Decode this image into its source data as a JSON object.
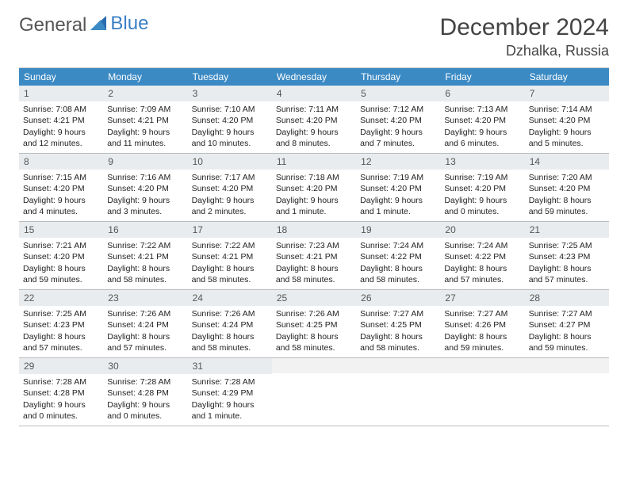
{
  "brand": {
    "first": "General",
    "second": "Blue"
  },
  "title": "December 2024",
  "location": "Dzhalka, Russia",
  "day_headers": [
    "Sunday",
    "Monday",
    "Tuesday",
    "Wednesday",
    "Thursday",
    "Friday",
    "Saturday"
  ],
  "colors": {
    "header_bg": "#3b8ac4",
    "header_text": "#ffffff",
    "daynum_bg": "#e9ecef",
    "border": "#bbbbbb",
    "text": "#222222",
    "brand_gray": "#555555",
    "brand_blue": "#3b7fc4"
  },
  "days": [
    {
      "n": "1",
      "sunrise": "Sunrise: 7:08 AM",
      "sunset": "Sunset: 4:21 PM",
      "daylight": "Daylight: 9 hours and 12 minutes."
    },
    {
      "n": "2",
      "sunrise": "Sunrise: 7:09 AM",
      "sunset": "Sunset: 4:21 PM",
      "daylight": "Daylight: 9 hours and 11 minutes."
    },
    {
      "n": "3",
      "sunrise": "Sunrise: 7:10 AM",
      "sunset": "Sunset: 4:20 PM",
      "daylight": "Daylight: 9 hours and 10 minutes."
    },
    {
      "n": "4",
      "sunrise": "Sunrise: 7:11 AM",
      "sunset": "Sunset: 4:20 PM",
      "daylight": "Daylight: 9 hours and 8 minutes."
    },
    {
      "n": "5",
      "sunrise": "Sunrise: 7:12 AM",
      "sunset": "Sunset: 4:20 PM",
      "daylight": "Daylight: 9 hours and 7 minutes."
    },
    {
      "n": "6",
      "sunrise": "Sunrise: 7:13 AM",
      "sunset": "Sunset: 4:20 PM",
      "daylight": "Daylight: 9 hours and 6 minutes."
    },
    {
      "n": "7",
      "sunrise": "Sunrise: 7:14 AM",
      "sunset": "Sunset: 4:20 PM",
      "daylight": "Daylight: 9 hours and 5 minutes."
    },
    {
      "n": "8",
      "sunrise": "Sunrise: 7:15 AM",
      "sunset": "Sunset: 4:20 PM",
      "daylight": "Daylight: 9 hours and 4 minutes."
    },
    {
      "n": "9",
      "sunrise": "Sunrise: 7:16 AM",
      "sunset": "Sunset: 4:20 PM",
      "daylight": "Daylight: 9 hours and 3 minutes."
    },
    {
      "n": "10",
      "sunrise": "Sunrise: 7:17 AM",
      "sunset": "Sunset: 4:20 PM",
      "daylight": "Daylight: 9 hours and 2 minutes."
    },
    {
      "n": "11",
      "sunrise": "Sunrise: 7:18 AM",
      "sunset": "Sunset: 4:20 PM",
      "daylight": "Daylight: 9 hours and 1 minute."
    },
    {
      "n": "12",
      "sunrise": "Sunrise: 7:19 AM",
      "sunset": "Sunset: 4:20 PM",
      "daylight": "Daylight: 9 hours and 1 minute."
    },
    {
      "n": "13",
      "sunrise": "Sunrise: 7:19 AM",
      "sunset": "Sunset: 4:20 PM",
      "daylight": "Daylight: 9 hours and 0 minutes."
    },
    {
      "n": "14",
      "sunrise": "Sunrise: 7:20 AM",
      "sunset": "Sunset: 4:20 PM",
      "daylight": "Daylight: 8 hours and 59 minutes."
    },
    {
      "n": "15",
      "sunrise": "Sunrise: 7:21 AM",
      "sunset": "Sunset: 4:20 PM",
      "daylight": "Daylight: 8 hours and 59 minutes."
    },
    {
      "n": "16",
      "sunrise": "Sunrise: 7:22 AM",
      "sunset": "Sunset: 4:21 PM",
      "daylight": "Daylight: 8 hours and 58 minutes."
    },
    {
      "n": "17",
      "sunrise": "Sunrise: 7:22 AM",
      "sunset": "Sunset: 4:21 PM",
      "daylight": "Daylight: 8 hours and 58 minutes."
    },
    {
      "n": "18",
      "sunrise": "Sunrise: 7:23 AM",
      "sunset": "Sunset: 4:21 PM",
      "daylight": "Daylight: 8 hours and 58 minutes."
    },
    {
      "n": "19",
      "sunrise": "Sunrise: 7:24 AM",
      "sunset": "Sunset: 4:22 PM",
      "daylight": "Daylight: 8 hours and 58 minutes."
    },
    {
      "n": "20",
      "sunrise": "Sunrise: 7:24 AM",
      "sunset": "Sunset: 4:22 PM",
      "daylight": "Daylight: 8 hours and 57 minutes."
    },
    {
      "n": "21",
      "sunrise": "Sunrise: 7:25 AM",
      "sunset": "Sunset: 4:23 PM",
      "daylight": "Daylight: 8 hours and 57 minutes."
    },
    {
      "n": "22",
      "sunrise": "Sunrise: 7:25 AM",
      "sunset": "Sunset: 4:23 PM",
      "daylight": "Daylight: 8 hours and 57 minutes."
    },
    {
      "n": "23",
      "sunrise": "Sunrise: 7:26 AM",
      "sunset": "Sunset: 4:24 PM",
      "daylight": "Daylight: 8 hours and 57 minutes."
    },
    {
      "n": "24",
      "sunrise": "Sunrise: 7:26 AM",
      "sunset": "Sunset: 4:24 PM",
      "daylight": "Daylight: 8 hours and 58 minutes."
    },
    {
      "n": "25",
      "sunrise": "Sunrise: 7:26 AM",
      "sunset": "Sunset: 4:25 PM",
      "daylight": "Daylight: 8 hours and 58 minutes."
    },
    {
      "n": "26",
      "sunrise": "Sunrise: 7:27 AM",
      "sunset": "Sunset: 4:25 PM",
      "daylight": "Daylight: 8 hours and 58 minutes."
    },
    {
      "n": "27",
      "sunrise": "Sunrise: 7:27 AM",
      "sunset": "Sunset: 4:26 PM",
      "daylight": "Daylight: 8 hours and 59 minutes."
    },
    {
      "n": "28",
      "sunrise": "Sunrise: 7:27 AM",
      "sunset": "Sunset: 4:27 PM",
      "daylight": "Daylight: 8 hours and 59 minutes."
    },
    {
      "n": "29",
      "sunrise": "Sunrise: 7:28 AM",
      "sunset": "Sunset: 4:28 PM",
      "daylight": "Daylight: 9 hours and 0 minutes."
    },
    {
      "n": "30",
      "sunrise": "Sunrise: 7:28 AM",
      "sunset": "Sunset: 4:28 PM",
      "daylight": "Daylight: 9 hours and 0 minutes."
    },
    {
      "n": "31",
      "sunrise": "Sunrise: 7:28 AM",
      "sunset": "Sunset: 4:29 PM",
      "daylight": "Daylight: 9 hours and 1 minute."
    }
  ],
  "trailing_empty": 4
}
